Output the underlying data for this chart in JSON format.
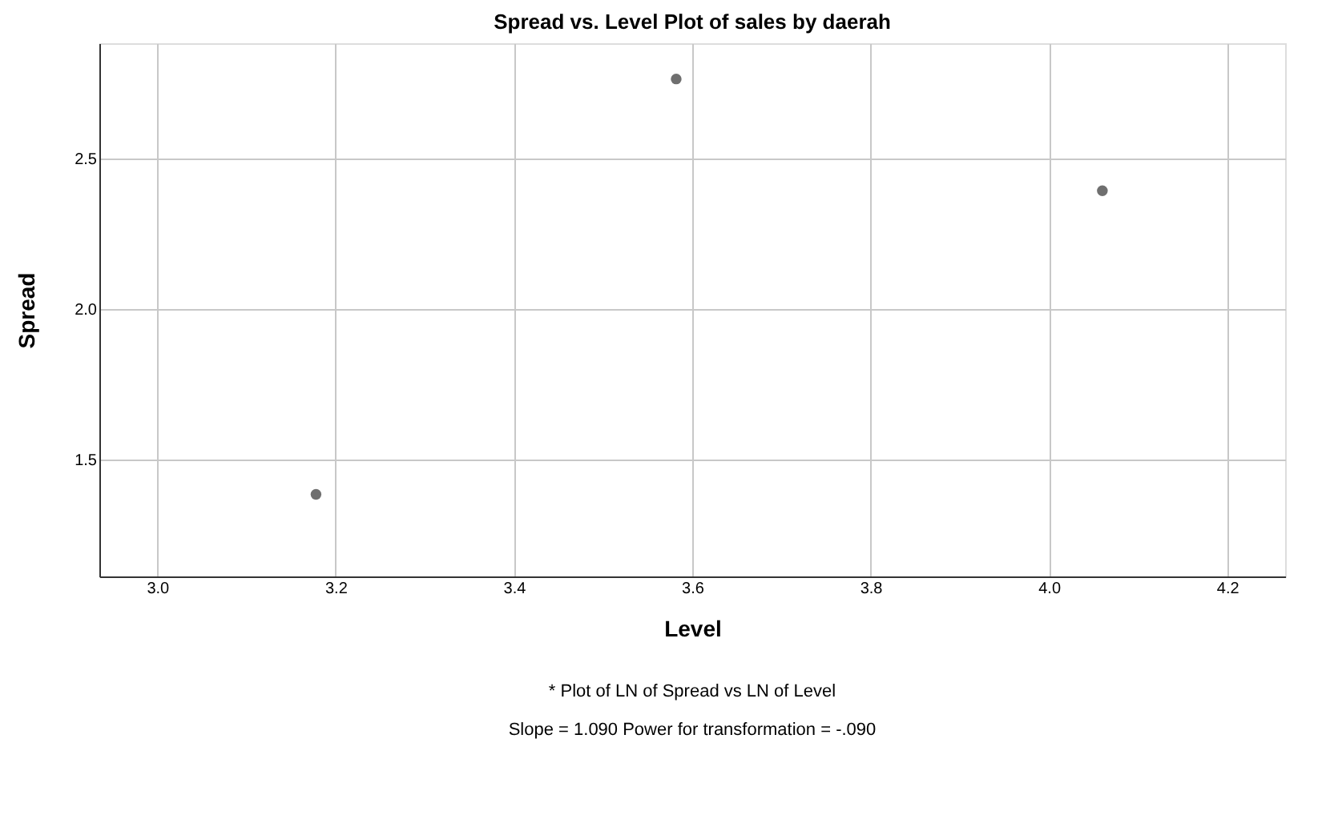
{
  "chart_data": {
    "type": "scatter",
    "title": "Spread vs. Level Plot of sales by daerah",
    "xlabel": "Level",
    "ylabel": "Spread",
    "x": [
      3.178,
      3.582,
      4.06
    ],
    "series": [
      {
        "color": "#6f6f6f",
        "values": [
          1.383,
          2.766,
          2.394
        ]
      }
    ],
    "xlim": [
      2.935,
      4.265
    ],
    "ylim": [
      1.11,
      2.885
    ],
    "xticks": [
      {
        "value": 3,
        "label": "3.0"
      },
      3.2,
      3.4,
      3.6,
      3.8,
      {
        "value": 4,
        "label": "4.0"
      },
      4.2
    ],
    "yticks": [
      1.5,
      {
        "value": 2,
        "label": "2.0"
      },
      2.5
    ],
    "grid": true,
    "marker": "circle",
    "annotations": [
      "* Plot of LN of Spread vs LN of Level",
      "Slope = 1.090 Power for transformation = -.090"
    ]
  }
}
